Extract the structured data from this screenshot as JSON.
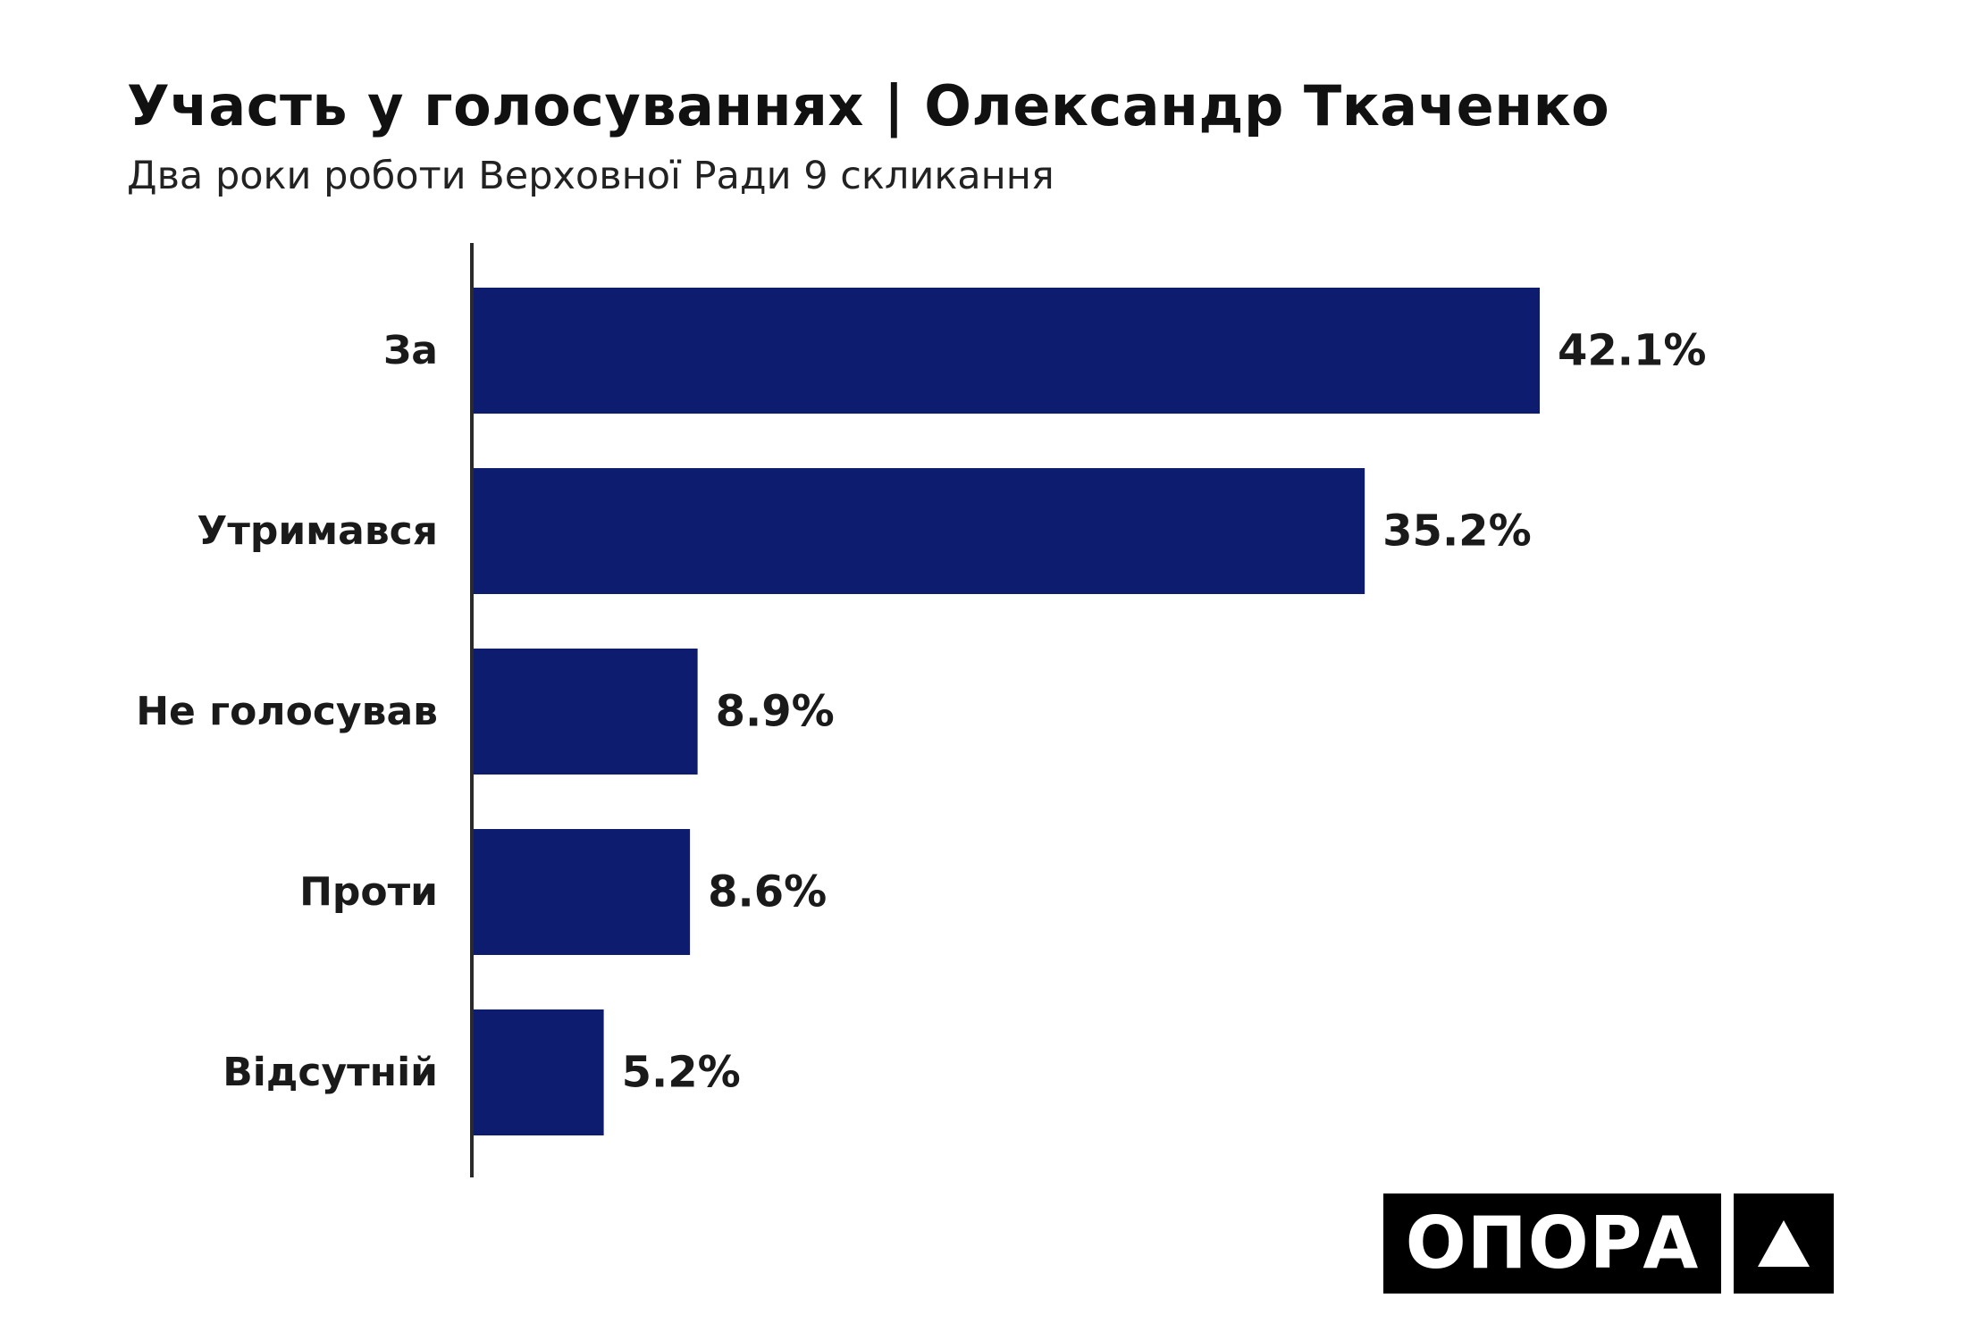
{
  "header": {
    "title": "Участь у голосуваннях | Олександр Ткаченко",
    "subtitle": "Два роки роботи Верховної Ради 9 скликання"
  },
  "logo": {
    "text": "ОПОРА"
  },
  "colors": {
    "bar": "#0e1c6f",
    "axis": "#2a2a2a",
    "text": "#1a1a1a"
  },
  "chart_data": {
    "type": "bar",
    "orientation": "horizontal",
    "categories": [
      "За",
      "Утримався",
      "Не голосував",
      "Проти",
      "Відсутній"
    ],
    "values": [
      42.1,
      35.2,
      8.9,
      8.6,
      5.2
    ],
    "value_labels": [
      "42.1%",
      "35.2%",
      "8.9%",
      "8.6%",
      "5.2%"
    ],
    "unit": "%",
    "xlim": [
      0,
      45
    ],
    "grid": false,
    "legend": "none"
  }
}
